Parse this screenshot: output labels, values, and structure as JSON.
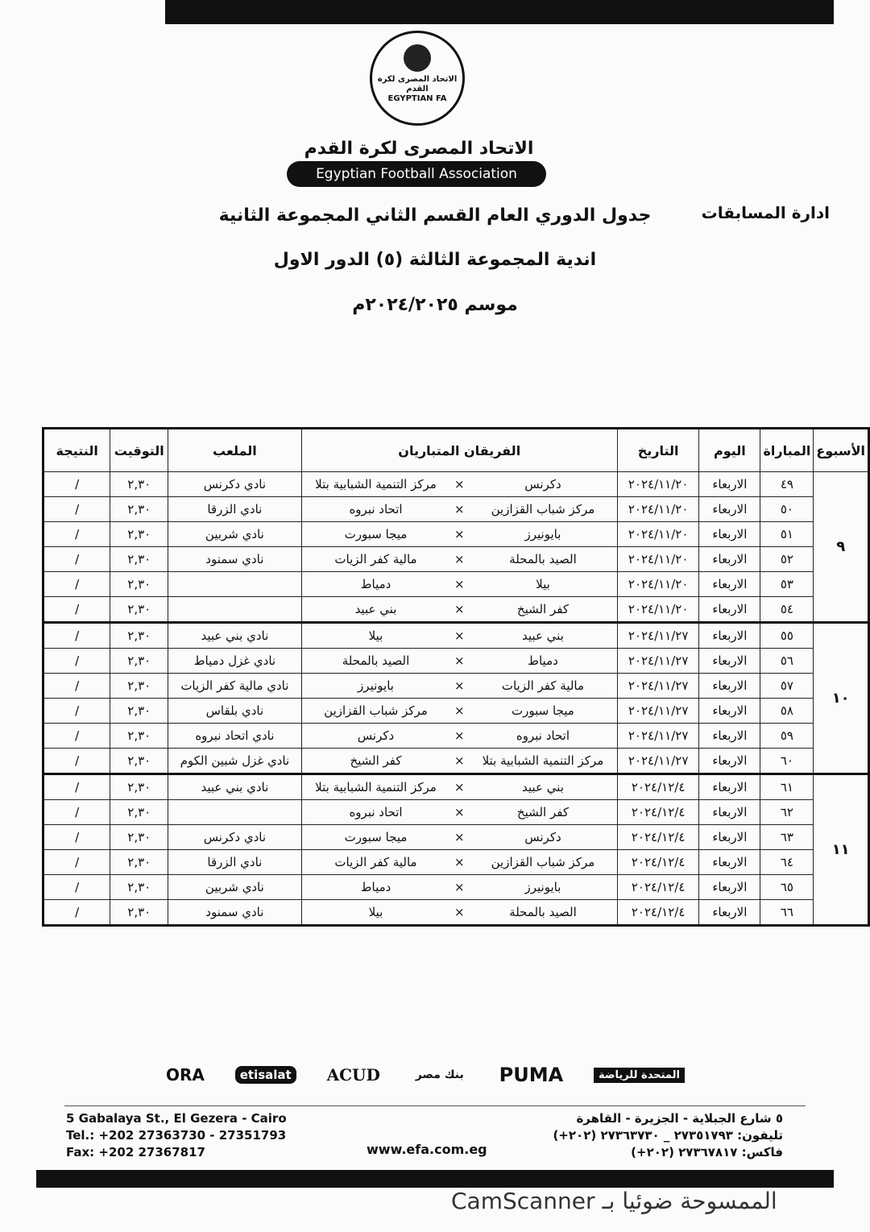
{
  "header": {
    "logo_text_ar": "الاتحاد المصرى لكرة القدم",
    "logo_text_en": "EGYPTIAN FA",
    "org_ar": "الاتحاد المصرى لكرة القدم",
    "org_en": "Egyptian Football Association",
    "department": "ادارة المسابقات",
    "title": "جدول الدوري العام القسم الثاني المجموعة الثانية",
    "subtitle": "اندية المجموعة الثالثة (٥) الدور الاول",
    "season": "موسم ٢٠٢٤/٢٠٢٥م"
  },
  "table": {
    "columns": [
      "الأسبوع",
      "المباراة",
      "اليوم",
      "التاريخ",
      "الفريقان المتباريان",
      "الملعب",
      "التوقيت",
      "النتيجة"
    ],
    "weeks": [
      {
        "week": "٩",
        "matches": [
          {
            "no": "٤٩",
            "day": "الاربعاء",
            "date": "٢٠٢٤/١١/٢٠",
            "home": "دكرنس",
            "vs": "×",
            "away": "مركز التنمية الشبابية بتلا",
            "stadium": "نادي دكرنس",
            "time": "٢,٣٠",
            "result": "/"
          },
          {
            "no": "٥٠",
            "day": "الاربعاء",
            "date": "٢٠٢٤/١١/٢٠",
            "home": "مركز شباب القزازين",
            "vs": "×",
            "away": "اتحاد نبروه",
            "stadium": "نادي الزرقا",
            "time": "٢,٣٠",
            "result": "/"
          },
          {
            "no": "٥١",
            "day": "الاربعاء",
            "date": "٢٠٢٤/١١/٢٠",
            "home": "بايونيرز",
            "vs": "×",
            "away": "ميجا سبورت",
            "stadium": "نادي شربين",
            "time": "٢,٣٠",
            "result": "/"
          },
          {
            "no": "٥٢",
            "day": "الاربعاء",
            "date": "٢٠٢٤/١١/٢٠",
            "home": "الصيد بالمحلة",
            "vs": "×",
            "away": "مالية كفر الزيات",
            "stadium": "نادي سمنود",
            "time": "٢,٣٠",
            "result": "/"
          },
          {
            "no": "٥٣",
            "day": "الاربعاء",
            "date": "٢٠٢٤/١١/٢٠",
            "home": "بيلا",
            "vs": "×",
            "away": "دمياط",
            "stadium": null,
            "time": "٢,٣٠",
            "result": "/"
          },
          {
            "no": "٥٤",
            "day": "الاربعاء",
            "date": "٢٠٢٤/١١/٢٠",
            "home": "كفر الشيخ",
            "vs": "×",
            "away": "بني عبيد",
            "stadium": null,
            "time": "٢,٣٠",
            "result": "/"
          }
        ]
      },
      {
        "week": "١٠",
        "matches": [
          {
            "no": "٥٥",
            "day": "الاربعاء",
            "date": "٢٠٢٤/١١/٢٧",
            "home": "بني عبيد",
            "vs": "×",
            "away": "بيلا",
            "stadium": "نادي بني عبيد",
            "time": "٢,٣٠",
            "result": "/"
          },
          {
            "no": "٥٦",
            "day": "الاربعاء",
            "date": "٢٠٢٤/١١/٢٧",
            "home": "دمياط",
            "vs": "×",
            "away": "الصيد بالمحلة",
            "stadium": "نادي غزل دمياط",
            "time": "٢,٣٠",
            "result": "/"
          },
          {
            "no": "٥٧",
            "day": "الاربعاء",
            "date": "٢٠٢٤/١١/٢٧",
            "home": "مالية كفر الزيات",
            "vs": "×",
            "away": "بايونيرز",
            "stadium": "نادي مالية كفر الزيات",
            "time": "٢,٣٠",
            "result": "/"
          },
          {
            "no": "٥٨",
            "day": "الاربعاء",
            "date": "٢٠٢٤/١١/٢٧",
            "home": "ميجا سبورت",
            "vs": "×",
            "away": "مركز شباب القزازين",
            "stadium": "نادي بلقاس",
            "time": "٢,٣٠",
            "result": "/"
          },
          {
            "no": "٥٩",
            "day": "الاربعاء",
            "date": "٢٠٢٤/١١/٢٧",
            "home": "اتحاد نبروه",
            "vs": "×",
            "away": "دكرنس",
            "stadium": "نادي اتحاد نبروه",
            "time": "٢,٣٠",
            "result": "/"
          },
          {
            "no": "٦٠",
            "day": "الاربعاء",
            "date": "٢٠٢٤/١١/٢٧",
            "home": "مركز التنمية الشبابية بتلا",
            "vs": "×",
            "away": "كفر الشيخ",
            "stadium": "نادي غزل شبين الكوم",
            "time": "٢,٣٠",
            "result": "/"
          }
        ]
      },
      {
        "week": "١١",
        "matches": [
          {
            "no": "٦١",
            "day": "الاربعاء",
            "date": "٢٠٢٤/١٢/٤",
            "home": "بني عبيد",
            "vs": "×",
            "away": "مركز التنمية الشبابية بتلا",
            "stadium": "نادي بني عبيد",
            "time": "٢,٣٠",
            "result": "/"
          },
          {
            "no": "٦٢",
            "day": "الاربعاء",
            "date": "٢٠٢٤/١٢/٤",
            "home": "كفر الشيخ",
            "vs": "×",
            "away": "اتحاد نبروه",
            "stadium": null,
            "time": "٢,٣٠",
            "result": "/"
          },
          {
            "no": "٦٣",
            "day": "الاربعاء",
            "date": "٢٠٢٤/١٢/٤",
            "home": "دكرنس",
            "vs": "×",
            "away": "ميجا سبورت",
            "stadium": "نادي دكرنس",
            "time": "٢,٣٠",
            "result": "/"
          },
          {
            "no": "٦٤",
            "day": "الاربعاء",
            "date": "٢٠٢٤/١٢/٤",
            "home": "مركز شباب القزازين",
            "vs": "×",
            "away": "مالية كفر الزيات",
            "stadium": "نادي الزرقا",
            "time": "٢,٣٠",
            "result": "/"
          },
          {
            "no": "٦٥",
            "day": "الاربعاء",
            "date": "٢٠٢٤/١٢/٤",
            "home": "بايونيرز",
            "vs": "×",
            "away": "دمياط",
            "stadium": "نادي شربين",
            "time": "٢,٣٠",
            "result": "/"
          },
          {
            "no": "٦٦",
            "day": "الاربعاء",
            "date": "٢٠٢٤/١٢/٤",
            "home": "الصيد بالمحلة",
            "vs": "×",
            "away": "بيلا",
            "stadium": "نادي سمنود",
            "time": "٢,٣٠",
            "result": "/"
          }
        ]
      }
    ]
  },
  "sponsors": [
    "ORA",
    "etisalat",
    "ACUD",
    "بنك مصر",
    "PUMA",
    "المتحدة للرياضة"
  ],
  "footer": {
    "address_en": [
      "5 Gabalaya St., El Gezera - Cairo",
      "Tel.: +202 27363730 - 27351793",
      "Fax: +202 27367817"
    ],
    "website": "www.efa.com.eg",
    "address_ar": [
      "٥ شارع الجبلاية - الجزيرة - القاهرة",
      "تليفون: ٢٧٣٥١٧٩٣ _ ٢٧٣٦٣٧٣٠ (٢٠٢+)",
      "فاكس: ٢٧٣٦٧٨١٧ (٢٠٢+)"
    ]
  },
  "watermark": "الممسوحة ضوئيا بـ CamScanner"
}
